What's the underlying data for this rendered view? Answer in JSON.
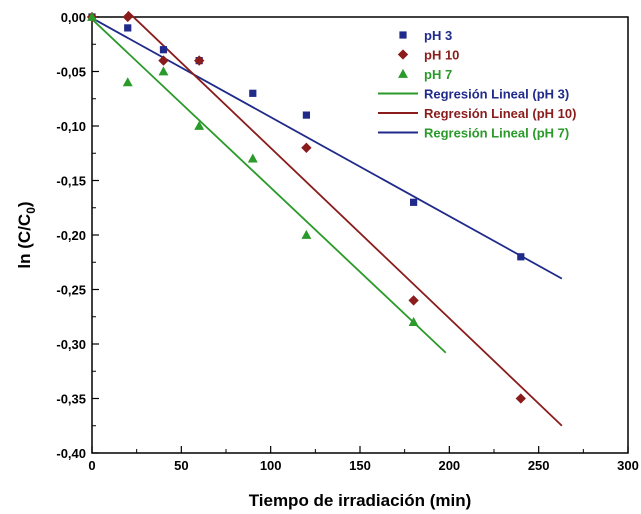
{
  "chart_data": {
    "type": "scatter",
    "xlabel": "Tiempo de irradiación (min)",
    "ylabel_main": "ln (C/C",
    "ylabel_sub": "0",
    "ylabel_close": ")",
    "xlim": [
      0,
      300
    ],
    "ylim": [
      -0.4,
      0.0
    ],
    "x_ticks": [
      0,
      50,
      100,
      150,
      200,
      250,
      300
    ],
    "x_tick_labels": [
      "0",
      "50",
      "100",
      "150",
      "200",
      "250",
      "300"
    ],
    "y_ticks": [
      0.0,
      -0.05,
      -0.1,
      -0.15,
      -0.2,
      -0.25,
      -0.3,
      -0.35,
      -0.4
    ],
    "y_tick_labels": [
      "0,00",
      "-0,05",
      "-0,10",
      "-0,15",
      "-0,20",
      "-0,25",
      "-0,30",
      "-0,35",
      "-0,40"
    ],
    "grid": false,
    "legend_position": "top-right",
    "series": [
      {
        "name": "pH 3",
        "marker": "square",
        "color": "#1f2a8a",
        "x": [
          0,
          20,
          40,
          60,
          90,
          120,
          180,
          240
        ],
        "y": [
          0.0,
          -0.01,
          -0.03,
          -0.04,
          -0.07,
          -0.09,
          -0.17,
          -0.22
        ]
      },
      {
        "name": "pH 10",
        "marker": "diamond",
        "color": "#8b1c1c",
        "x": [
          0,
          20,
          40,
          60,
          120,
          180,
          240
        ],
        "y": [
          0.0,
          0.0,
          -0.04,
          -0.04,
          -0.12,
          -0.26,
          -0.35
        ]
      },
      {
        "name": "pH 7",
        "marker": "triangle",
        "color": "#2a9a2a",
        "x": [
          0,
          20,
          40,
          60,
          90,
          120,
          180
        ],
        "y": [
          0.0,
          -0.06,
          -0.05,
          -0.1,
          -0.13,
          -0.2,
          -0.28
        ]
      }
    ],
    "fit_lines": [
      {
        "name": "Regresión Lineal (pH 3)",
        "color": "#1f2a8a",
        "x": [
          0,
          263
        ],
        "y": [
          -0.001,
          -0.24
        ],
        "legend_color": "#2a9a2a"
      },
      {
        "name": "Regresión Lineal (pH 10)",
        "color": "#8b1c1c",
        "x": [
          20,
          263
        ],
        "y": [
          0.005,
          -0.375
        ],
        "legend_color": "#8b1c1c"
      },
      {
        "name": "Regresión Lineal (pH 7)",
        "color": "#2a9a2a",
        "x": [
          0,
          198
        ],
        "y": [
          -0.002,
          -0.308
        ],
        "legend_color": "#1f2a8a"
      }
    ],
    "legend": [
      {
        "label": "pH 3",
        "kind": "marker",
        "marker": "square",
        "color": "#1f2a8a",
        "text_color": "#1f2a8a"
      },
      {
        "label": "pH 10",
        "kind": "marker",
        "marker": "diamond",
        "color": "#8b1c1c",
        "text_color": "#8b1c1c"
      },
      {
        "label": "pH 7",
        "kind": "marker",
        "marker": "triangle",
        "color": "#2a9a2a",
        "text_color": "#2a9a2a"
      },
      {
        "label": "Regresión Lineal (pH 3)",
        "kind": "line",
        "color": "#2a9a2a",
        "text_color": "#1f2a8a"
      },
      {
        "label": "Regresión Lineal (pH 10)",
        "kind": "line",
        "color": "#8b1c1c",
        "text_color": "#8b1c1c"
      },
      {
        "label": "Regresión Lineal (pH 7)",
        "kind": "line",
        "color": "#1f2a8a",
        "text_color": "#2a9a2a"
      }
    ]
  }
}
